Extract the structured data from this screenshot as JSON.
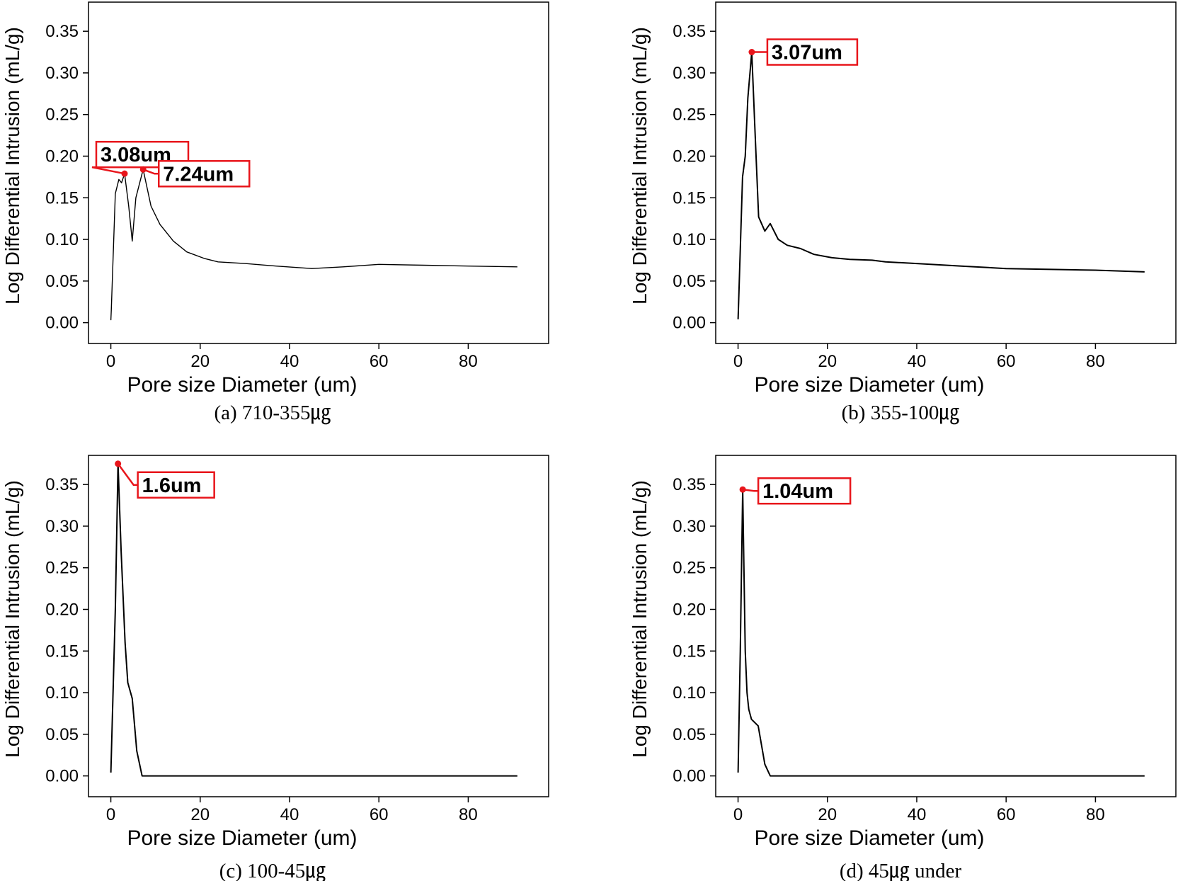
{
  "chart_data": [
    {
      "type": "line",
      "caption": "(a) 710-355㎍",
      "xlabel": "Pore size Diameter (um)",
      "ylabel": "Log Differential Intrusion (mL/g)",
      "xlim": [
        -5,
        98
      ],
      "ylim": [
        -0.025,
        0.385
      ],
      "xticks": [
        0,
        20,
        40,
        60,
        80
      ],
      "yticks": [
        0.0,
        0.05,
        0.1,
        0.15,
        0.2,
        0.25,
        0.3,
        0.35
      ],
      "x": [
        0.0,
        0.1,
        1.0,
        1.8,
        2.4,
        3.08,
        4.0,
        4.8,
        5.6,
        7.24,
        9.0,
        11.0,
        14.0,
        17.0,
        21.0,
        24.0,
        30.0,
        37.0,
        45.0,
        52.0,
        60.0,
        70.0,
        80.0,
        91.0
      ],
      "y": [
        0.003,
        0.015,
        0.155,
        0.172,
        0.168,
        0.179,
        0.14,
        0.098,
        0.15,
        0.184,
        0.14,
        0.118,
        0.098,
        0.085,
        0.077,
        0.073,
        0.071,
        0.068,
        0.065,
        0.067,
        0.07,
        0.069,
        0.068,
        0.067
      ],
      "annotations": [
        {
          "label": "3.08um",
          "x": 3.08,
          "y": 0.179
        },
        {
          "label": "7.24um",
          "x": 7.24,
          "y": 0.184
        }
      ]
    },
    {
      "type": "line",
      "caption": "(b) 355-100㎍",
      "xlabel": "Pore size Diameter (um)",
      "ylabel": "Log Differential Intrusion (mL/g)",
      "xlim": [
        -5,
        98
      ],
      "ylim": [
        -0.025,
        0.385
      ],
      "xticks": [
        0,
        20,
        40,
        60,
        80
      ],
      "yticks": [
        0.0,
        0.05,
        0.1,
        0.15,
        0.2,
        0.25,
        0.3,
        0.35
      ],
      "x": [
        0.0,
        1.0,
        1.6,
        2.2,
        3.07,
        3.8,
        4.6,
        6.0,
        7.2,
        9.0,
        11.0,
        14.0,
        17.0,
        21.0,
        25.0,
        30.0,
        33.0,
        40.0,
        50.0,
        60.0,
        70.0,
        80.0,
        91.0
      ],
      "y": [
        0.004,
        0.175,
        0.2,
        0.27,
        0.325,
        0.23,
        0.127,
        0.11,
        0.119,
        0.1,
        0.093,
        0.089,
        0.082,
        0.078,
        0.076,
        0.075,
        0.073,
        0.071,
        0.068,
        0.065,
        0.064,
        0.063,
        0.061
      ],
      "annotations": [
        {
          "label": "3.07um",
          "x": 3.07,
          "y": 0.325
        }
      ]
    },
    {
      "type": "line",
      "caption": "(c) 100-45㎍",
      "xlabel": "Pore size Diameter (um)",
      "ylabel": "Log Differential Intrusion (mL/g)",
      "xlim": [
        -5,
        98
      ],
      "ylim": [
        -0.025,
        0.385
      ],
      "xticks": [
        0,
        20,
        40,
        60,
        80
      ],
      "yticks": [
        0.0,
        0.05,
        0.1,
        0.15,
        0.2,
        0.25,
        0.3,
        0.35
      ],
      "x": [
        0.0,
        1.0,
        1.6,
        2.3,
        3.2,
        3.8,
        4.8,
        5.8,
        7.0,
        91.0
      ],
      "y": [
        0.004,
        0.2,
        0.375,
        0.27,
        0.16,
        0.112,
        0.093,
        0.03,
        0.0,
        0.0
      ],
      "annotations": [
        {
          "label": "1.6um",
          "x": 1.6,
          "y": 0.375
        }
      ]
    },
    {
      "type": "line",
      "caption": "(d) 45㎍ under",
      "xlabel": "Pore size Diameter (um)",
      "ylabel": "Log Differential Intrusion (mL/g)",
      "xlim": [
        -5,
        98
      ],
      "ylim": [
        -0.025,
        0.385
      ],
      "xticks": [
        0,
        20,
        40,
        60,
        80
      ],
      "yticks": [
        0.0,
        0.05,
        0.1,
        0.15,
        0.2,
        0.25,
        0.3,
        0.35
      ],
      "x": [
        0.0,
        0.5,
        1.04,
        1.6,
        2.0,
        2.4,
        3.0,
        4.5,
        6.0,
        7.2,
        91.0
      ],
      "y": [
        0.004,
        0.15,
        0.344,
        0.15,
        0.1,
        0.08,
        0.068,
        0.06,
        0.014,
        0.0,
        0.0
      ],
      "annotations": [
        {
          "label": "1.04um",
          "x": 1.04,
          "y": 0.344
        }
      ]
    }
  ],
  "colors": {
    "line": "#000000",
    "annotation": "#e8151b"
  }
}
